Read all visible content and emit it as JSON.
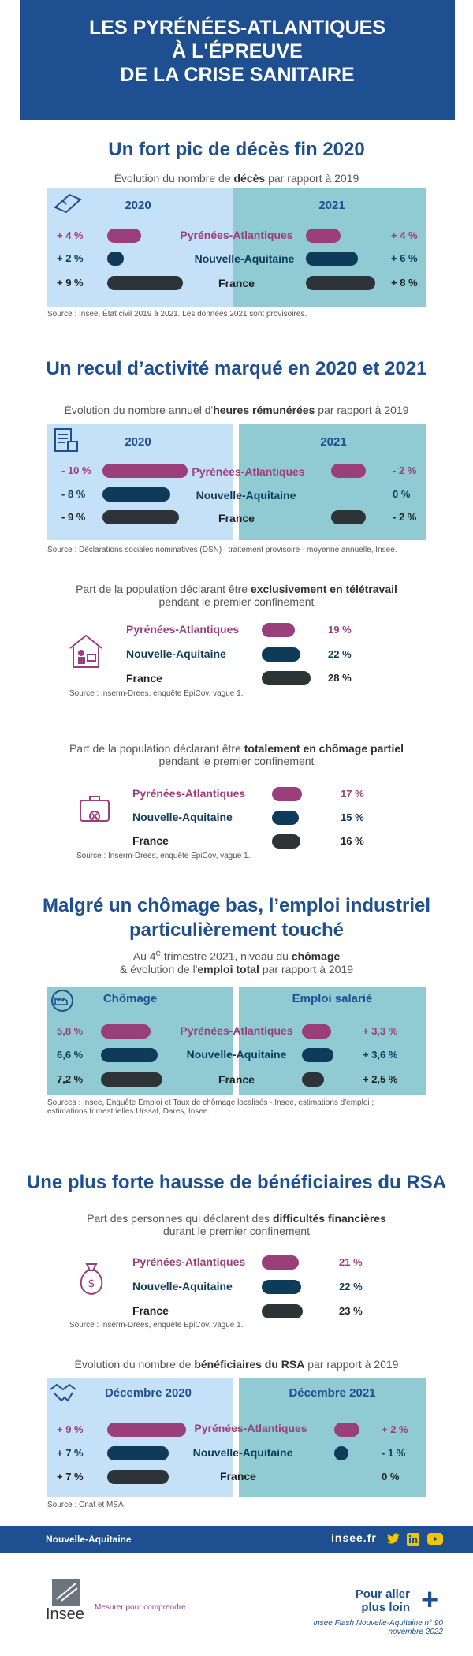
{
  "header": {
    "line1": "LES PYRÉNÉES-ATLANTIQUES",
    "line2": "À L'ÉPREUVE",
    "line3": "DE LA CRISE SANITAIRE"
  },
  "regions": [
    "Pyrénées-Atlantiques",
    "Nouvelle-Aquitaine",
    "France"
  ],
  "colors": {
    "pa": "#9b3f7a",
    "na": "#0f3b5a",
    "fr": "#2d3438",
    "blue": "#1d4f91",
    "light": "#c5e1f7",
    "teal": "#90cbd4"
  },
  "s1": {
    "title": "Un fort pic de décès fin 2020",
    "sub_pre": "Évolution du nombre de ",
    "sub_bold": "décès",
    "sub_post": " par rapport à 2019",
    "left_title": "2020",
    "right_title": "2021",
    "source": "Source : Insee, État civil 2019 à 2021. Les données 2021 sont provisoires."
  },
  "s2": {
    "title": "Un recul d’activité marqué en 2020 et 2021",
    "sub_pre": "Évolution du nombre annuel d'",
    "sub_bold": "heures rémunérées",
    "sub_post": " par rapport à 2019",
    "left_title": "2020",
    "right_title": "2021",
    "source": "Source : Déclarations sociales nominatives (DSN)– traitement provisoire - moyenne annuelle, Insee."
  },
  "s3": {
    "sub_pre": "Part de la population déclarant être ",
    "sub_bold": "exclusivement en télétravail",
    "sub_line2": "pendant le premier confinement",
    "source": "Source : Inserm-Drees, enquête EpiCov, vague 1."
  },
  "s4": {
    "sub_pre": "Part de la population déclarant être ",
    "sub_bold": "totalement en chômage partiel",
    "sub_line2": "pendant le premier confinement",
    "source": "Source : Inserm-Drees, enquête EpiCov, vague 1."
  },
  "s5": {
    "title1": "Malgré un chômage bas, l’emploi industriel",
    "title2": "particulièrement touché",
    "sub_l1_pre": "Au 4",
    "sub_l1_sup": "e",
    "sub_l1_mid": " trimestre 2021, niveau du ",
    "sub_l1_bold": "chômage",
    "sub_l2_pre": "& évolution de l'",
    "sub_l2_bold": "emploi total",
    "sub_l2_post": " par rapport à 2019",
    "left_title": "Chômage",
    "right_title": "Emploi salarié",
    "source1": "Sources :  Insee, Enquête Emploi et Taux de chômage localisés - Insee, estimations d'emploi ;",
    "source2": "estimations trimestrielles Urssaf, Dares, Insee."
  },
  "s6": {
    "title": "Une plus forte hausse de bénéficiaires du RSA",
    "sub_pre": "Part des personnes qui déclarent des ",
    "sub_bold": "difficultés financières",
    "sub_line2": "durant le premier confinement",
    "source": "Source : Inserm-Drees, enquête EpiCov, vague 1."
  },
  "s7": {
    "sub_pre": "Évolution du nombre de ",
    "sub_bold": "bénéficiaires du RSA",
    "sub_post": " par rapport à 2019",
    "left_title": "Décembre 2020",
    "right_title": "Décembre 2021",
    "source": "Source : Cnaf et MSA"
  },
  "footer": {
    "region": "Nouvelle-Aquitaine",
    "site": "insee.fr",
    "social": [
      "twitter-icon",
      "linkedin-icon",
      "youtube-icon"
    ]
  },
  "bottom": {
    "logo": "Insee",
    "tagline": "Mesurer pour comprendre",
    "more1": "Pour aller",
    "more2": "plus loin",
    "pub1": "Insee Flash Nouvelle-Aquitaine n° 90",
    "pub2": "novembre 2022"
  },
  "chart_data": [
    {
      "type": "bar",
      "title": "Un fort pic de décès fin 2020",
      "categories": [
        "Pyrénées-Atlantiques",
        "Nouvelle-Aquitaine",
        "France"
      ],
      "series": [
        {
          "name": "2020",
          "values": [
            4,
            2,
            9
          ],
          "labels": [
            "+ 4 %",
            "+ 2 %",
            "+ 9 %"
          ]
        },
        {
          "name": "2021",
          "values": [
            4,
            6,
            8
          ],
          "labels": [
            "+ 4 %",
            "+ 6 %",
            "+ 8 %"
          ]
        }
      ]
    },
    {
      "type": "bar",
      "title": "Un recul d’activité marqué en 2020 et 2021",
      "categories": [
        "Pyrénées-Atlantiques",
        "Nouvelle-Aquitaine",
        "France"
      ],
      "series": [
        {
          "name": "2020",
          "values": [
            -10,
            -8,
            -9
          ],
          "labels": [
            "- 10 %",
            "- 8 %",
            "- 9 %"
          ]
        },
        {
          "name": "2021",
          "values": [
            -2,
            0,
            -2
          ],
          "labels": [
            "- 2 %",
            "0 %",
            "- 2 %"
          ]
        }
      ]
    },
    {
      "type": "bar",
      "categories": [
        "Pyrénées-Atlantiques",
        "Nouvelle-Aquitaine",
        "France"
      ],
      "series": [
        {
          "values": [
            19,
            22,
            28
          ],
          "labels": [
            "19 %",
            "22 %",
            "28 %"
          ]
        }
      ]
    },
    {
      "type": "bar",
      "categories": [
        "Pyrénées-Atlantiques",
        "Nouvelle-Aquitaine",
        "France"
      ],
      "series": [
        {
          "values": [
            17,
            15,
            16
          ],
          "labels": [
            "17 %",
            "15 %",
            "16 %"
          ]
        }
      ]
    },
    {
      "type": "bar",
      "title": "Malgré un chômage bas, l’emploi industriel particulièrement touché",
      "categories": [
        "Pyrénées-Atlantiques",
        "Nouvelle-Aquitaine",
        "France"
      ],
      "series": [
        {
          "name": "Chômage",
          "values": [
            5.8,
            6.6,
            7.2
          ],
          "labels": [
            "5,8 %",
            "6,6 %",
            "7,2 %"
          ]
        },
        {
          "name": "Emploi salarié",
          "values": [
            3.3,
            3.6,
            2.5
          ],
          "labels": [
            "+ 3,3 %",
            "+ 3,6 %",
            "+ 2,5 %"
          ]
        }
      ]
    },
    {
      "type": "bar",
      "title": "Une plus forte hausse de bénéficiaires du RSA",
      "categories": [
        "Pyrénées-Atlantiques",
        "Nouvelle-Aquitaine",
        "France"
      ],
      "series": [
        {
          "values": [
            21,
            22,
            23
          ],
          "labels": [
            "21 %",
            "22 %",
            "23 %"
          ]
        }
      ]
    },
    {
      "type": "bar",
      "categories": [
        "Pyrénées-Atlantiques",
        "Nouvelle-Aquitaine",
        "France"
      ],
      "series": [
        {
          "name": "Décembre 2020",
          "values": [
            9,
            7,
            7
          ],
          "labels": [
            "+ 9 %",
            "+ 7 %",
            "+ 7 %"
          ]
        },
        {
          "name": "Décembre 2021",
          "values": [
            2,
            -1,
            0
          ],
          "labels": [
            "+ 2 %",
            "- 1 %",
            "0 %"
          ]
        }
      ]
    }
  ]
}
